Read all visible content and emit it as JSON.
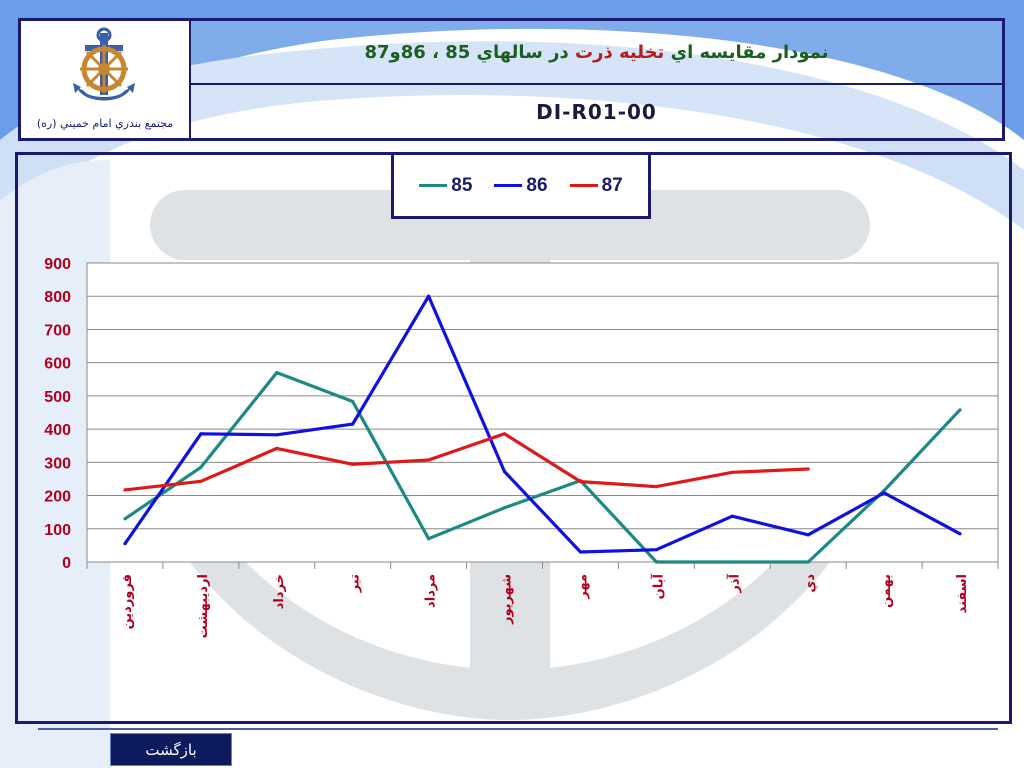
{
  "header": {
    "org_name": "مجتمع بندري امام خميني (ره)",
    "title_part1": "نمودار مقايسه اي ",
    "title_highlight": "تخليه ذرت",
    "title_part2": " در سالهاي 85 ، 86و87",
    "doc_code": "DI-R01-00"
  },
  "footer": {
    "back_label": "بازگشت"
  },
  "colors": {
    "series_85": "#1a8a82",
    "series_86": "#1010e0",
    "series_87": "#e01818",
    "frame": "#1a1a6e"
  },
  "chart_data": {
    "type": "line",
    "categories": [
      "فروردين",
      "ارديبهشت",
      "خرداد",
      "تير",
      "مرداد",
      "شهريور",
      "مهر",
      "آبان",
      "آذر",
      "دي",
      "بهمن",
      "اسفند"
    ],
    "ylim": [
      0,
      900
    ],
    "yticks": [
      "0",
      "100",
      "200",
      "300",
      "400",
      "500",
      "600",
      "700",
      "800",
      "900"
    ],
    "grid": true,
    "legend_position": "top-center",
    "series": [
      {
        "name": "85",
        "color": "#1a8a82",
        "values": [
          130,
          285,
          570,
          483,
          70,
          163,
          245,
          0,
          0,
          0,
          215,
          458
        ]
      },
      {
        "name": "86",
        "color": "#1010e0",
        "values": [
          55,
          386,
          383,
          415,
          800,
          272,
          30,
          37,
          138,
          82,
          208,
          85
        ]
      },
      {
        "name": "87",
        "color": "#e01818",
        "values": [
          217,
          243,
          342,
          294,
          307,
          386,
          242,
          227,
          270,
          280,
          null,
          null
        ]
      }
    ]
  }
}
